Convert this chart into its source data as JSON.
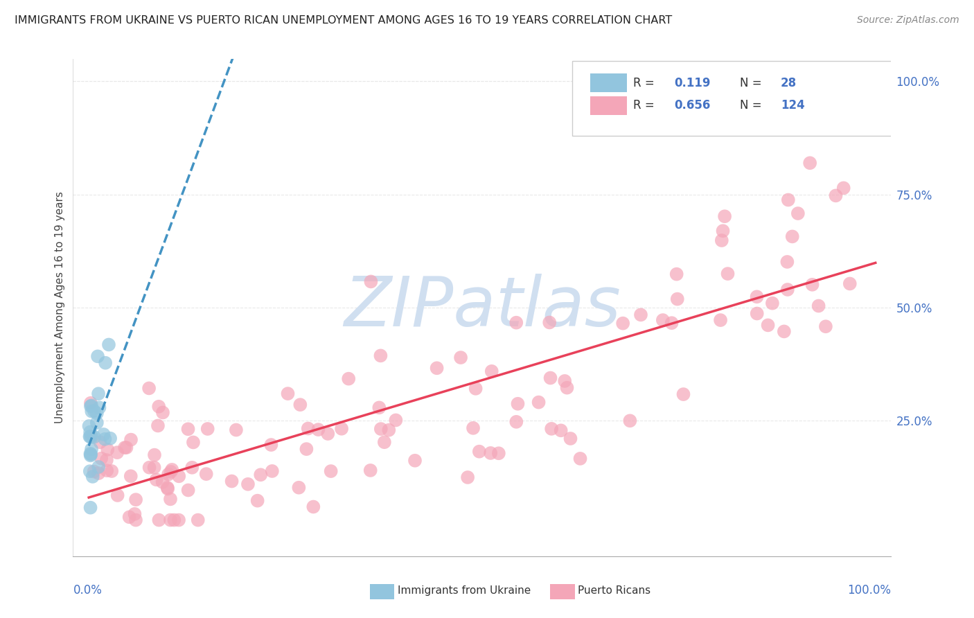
{
  "title": "IMMIGRANTS FROM UKRAINE VS PUERTO RICAN UNEMPLOYMENT AMONG AGES 16 TO 19 YEARS CORRELATION CHART",
  "source": "Source: ZipAtlas.com",
  "ylabel": "Unemployment Among Ages 16 to 19 years",
  "ukraine_R": 0.119,
  "ukraine_N": 28,
  "puertorico_R": 0.656,
  "puertorico_N": 124,
  "ukraine_color": "#92c5de",
  "puertorico_color": "#f4a6b8",
  "ukraine_line_color": "#4393c3",
  "puertorico_line_color": "#e8415a",
  "watermark_text": "ZIPatlas",
  "watermark_color": "#d0dff0",
  "right_ytick_labels": [
    "100.0%",
    "75.0%",
    "50.0%",
    "25.0%"
  ],
  "right_ytick_vals": [
    1.0,
    0.75,
    0.5,
    0.25
  ],
  "right_ytick_color": "#4472c4",
  "xlim": [
    -0.02,
    1.02
  ],
  "ylim": [
    -0.05,
    1.05
  ],
  "plot_xlim": [
    0.0,
    1.0
  ],
  "plot_ylim": [
    0.0,
    1.0
  ],
  "background_color": "#ffffff",
  "grid_color": "#e8e8e8",
  "title_color": "#222222",
  "source_color": "#888888",
  "ylabel_color": "#444444",
  "xtick_color": "#4472c4",
  "legend_label_ukraine": "Immigrants from Ukraine",
  "legend_label_pr": "Puerto Ricans"
}
